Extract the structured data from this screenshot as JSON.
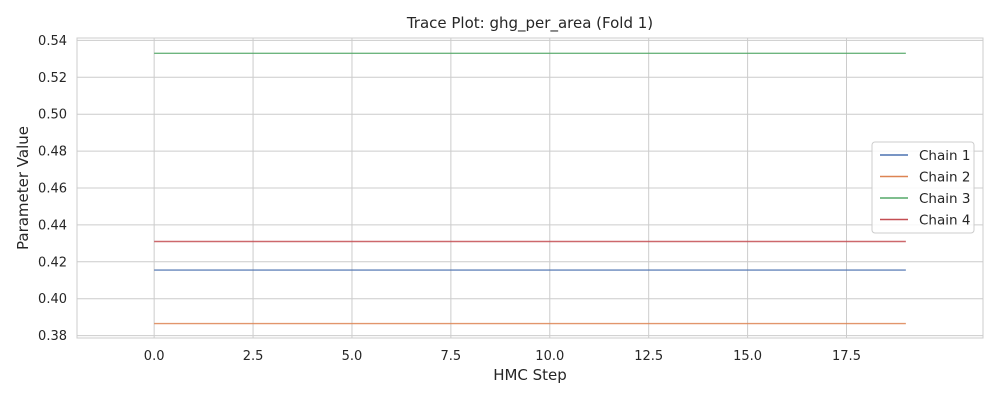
{
  "chart_data": {
    "type": "line",
    "title": "Trace Plot: ghg_per_area (Fold 1)",
    "xlabel": "HMC Step",
    "ylabel": "Parameter Value",
    "xlim": [
      -1.95,
      20.95
    ],
    "ylim": [
      0.3787,
      0.5413
    ],
    "x_ticks": [
      0.0,
      2.5,
      5.0,
      7.5,
      10.0,
      12.5,
      15.0,
      17.5
    ],
    "x_tick_labels": [
      "0.0",
      "2.5",
      "5.0",
      "7.5",
      "10.0",
      "12.5",
      "15.0",
      "17.5"
    ],
    "y_ticks": [
      0.38,
      0.4,
      0.42,
      0.44,
      0.46,
      0.48,
      0.5,
      0.52,
      0.54
    ],
    "y_tick_labels": [
      "0.38",
      "0.40",
      "0.42",
      "0.44",
      "0.46",
      "0.48",
      "0.50",
      "0.52",
      "0.54"
    ],
    "grid": true,
    "legend_position": "center-right",
    "x": [
      0,
      1,
      2,
      3,
      4,
      5,
      6,
      7,
      8,
      9,
      10,
      11,
      12,
      13,
      14,
      15,
      16,
      17,
      18,
      19
    ],
    "series": [
      {
        "name": "Chain 1",
        "color": "#4c72b0",
        "values": [
          0.4155,
          0.4155,
          0.4155,
          0.4155,
          0.4155,
          0.4155,
          0.4155,
          0.4155,
          0.4155,
          0.4155,
          0.4155,
          0.4155,
          0.4155,
          0.4155,
          0.4155,
          0.4155,
          0.4155,
          0.4155,
          0.4155,
          0.4155
        ]
      },
      {
        "name": "Chain 2",
        "color": "#dd8452",
        "values": [
          0.3865,
          0.3865,
          0.3865,
          0.3865,
          0.3865,
          0.3865,
          0.3865,
          0.3865,
          0.3865,
          0.3865,
          0.3865,
          0.3865,
          0.3865,
          0.3865,
          0.3865,
          0.3865,
          0.3865,
          0.3865,
          0.3865,
          0.3865
        ]
      },
      {
        "name": "Chain 3",
        "color": "#55a868",
        "values": [
          0.533,
          0.533,
          0.533,
          0.533,
          0.533,
          0.533,
          0.533,
          0.533,
          0.533,
          0.533,
          0.533,
          0.533,
          0.533,
          0.533,
          0.533,
          0.533,
          0.533,
          0.533,
          0.533,
          0.533
        ]
      },
      {
        "name": "Chain 4",
        "color": "#c44e52",
        "values": [
          0.431,
          0.431,
          0.431,
          0.431,
          0.431,
          0.431,
          0.431,
          0.431,
          0.431,
          0.431,
          0.431,
          0.431,
          0.431,
          0.431,
          0.431,
          0.431,
          0.431,
          0.431,
          0.431,
          0.431
        ]
      }
    ]
  }
}
